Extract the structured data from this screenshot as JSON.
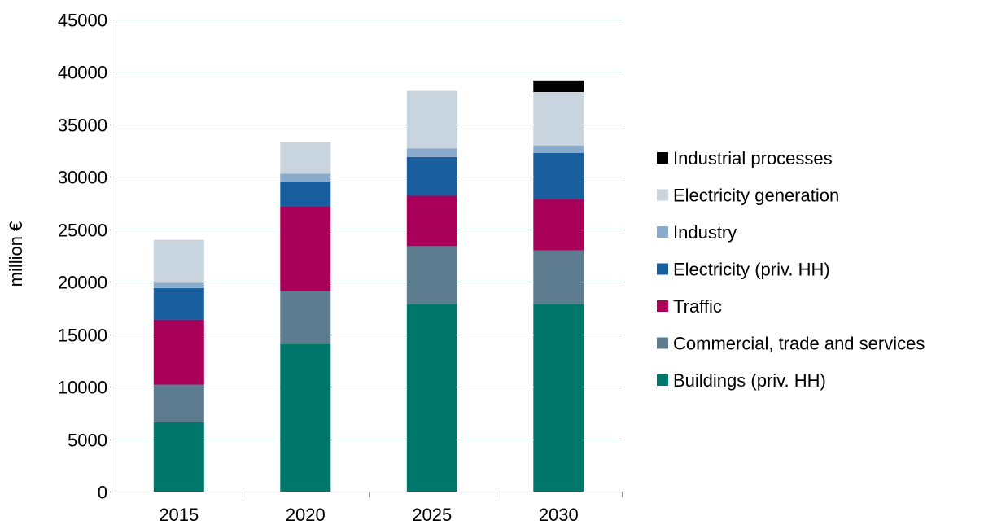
{
  "chart_data": {
    "type": "bar",
    "stacked": true,
    "title": "",
    "xlabel": "",
    "ylabel": "million €",
    "ylim": [
      0,
      45000
    ],
    "yticks": [
      0,
      5000,
      10000,
      15000,
      20000,
      25000,
      30000,
      35000,
      40000,
      45000
    ],
    "grid": true,
    "legend_position": "right",
    "categories": [
      "2015",
      "2020",
      "2025",
      "2030"
    ],
    "series": [
      {
        "name": "Buildings (priv. HH)",
        "color": "#00776A",
        "values": [
          6600,
          14100,
          17900,
          17900
        ]
      },
      {
        "name": "Commercial, trade and services",
        "color": "#5E7C90",
        "values": [
          3600,
          5000,
          5500,
          5100
        ]
      },
      {
        "name": "Traffic",
        "color": "#A9005A",
        "values": [
          6200,
          8100,
          4800,
          4900
        ]
      },
      {
        "name": "Electricity (priv. HH)",
        "color": "#195FA0",
        "values": [
          3000,
          2300,
          3700,
          4400
        ]
      },
      {
        "name": "Industry",
        "color": "#8AAACB",
        "values": [
          500,
          800,
          800,
          700
        ]
      },
      {
        "name": "Electricity generation",
        "color": "#C8D5DE",
        "values": [
          4100,
          3000,
          5500,
          5100
        ]
      },
      {
        "name": "Industrial processes",
        "color": "#000000",
        "values": [
          0,
          0,
          0,
          1100
        ]
      }
    ]
  }
}
